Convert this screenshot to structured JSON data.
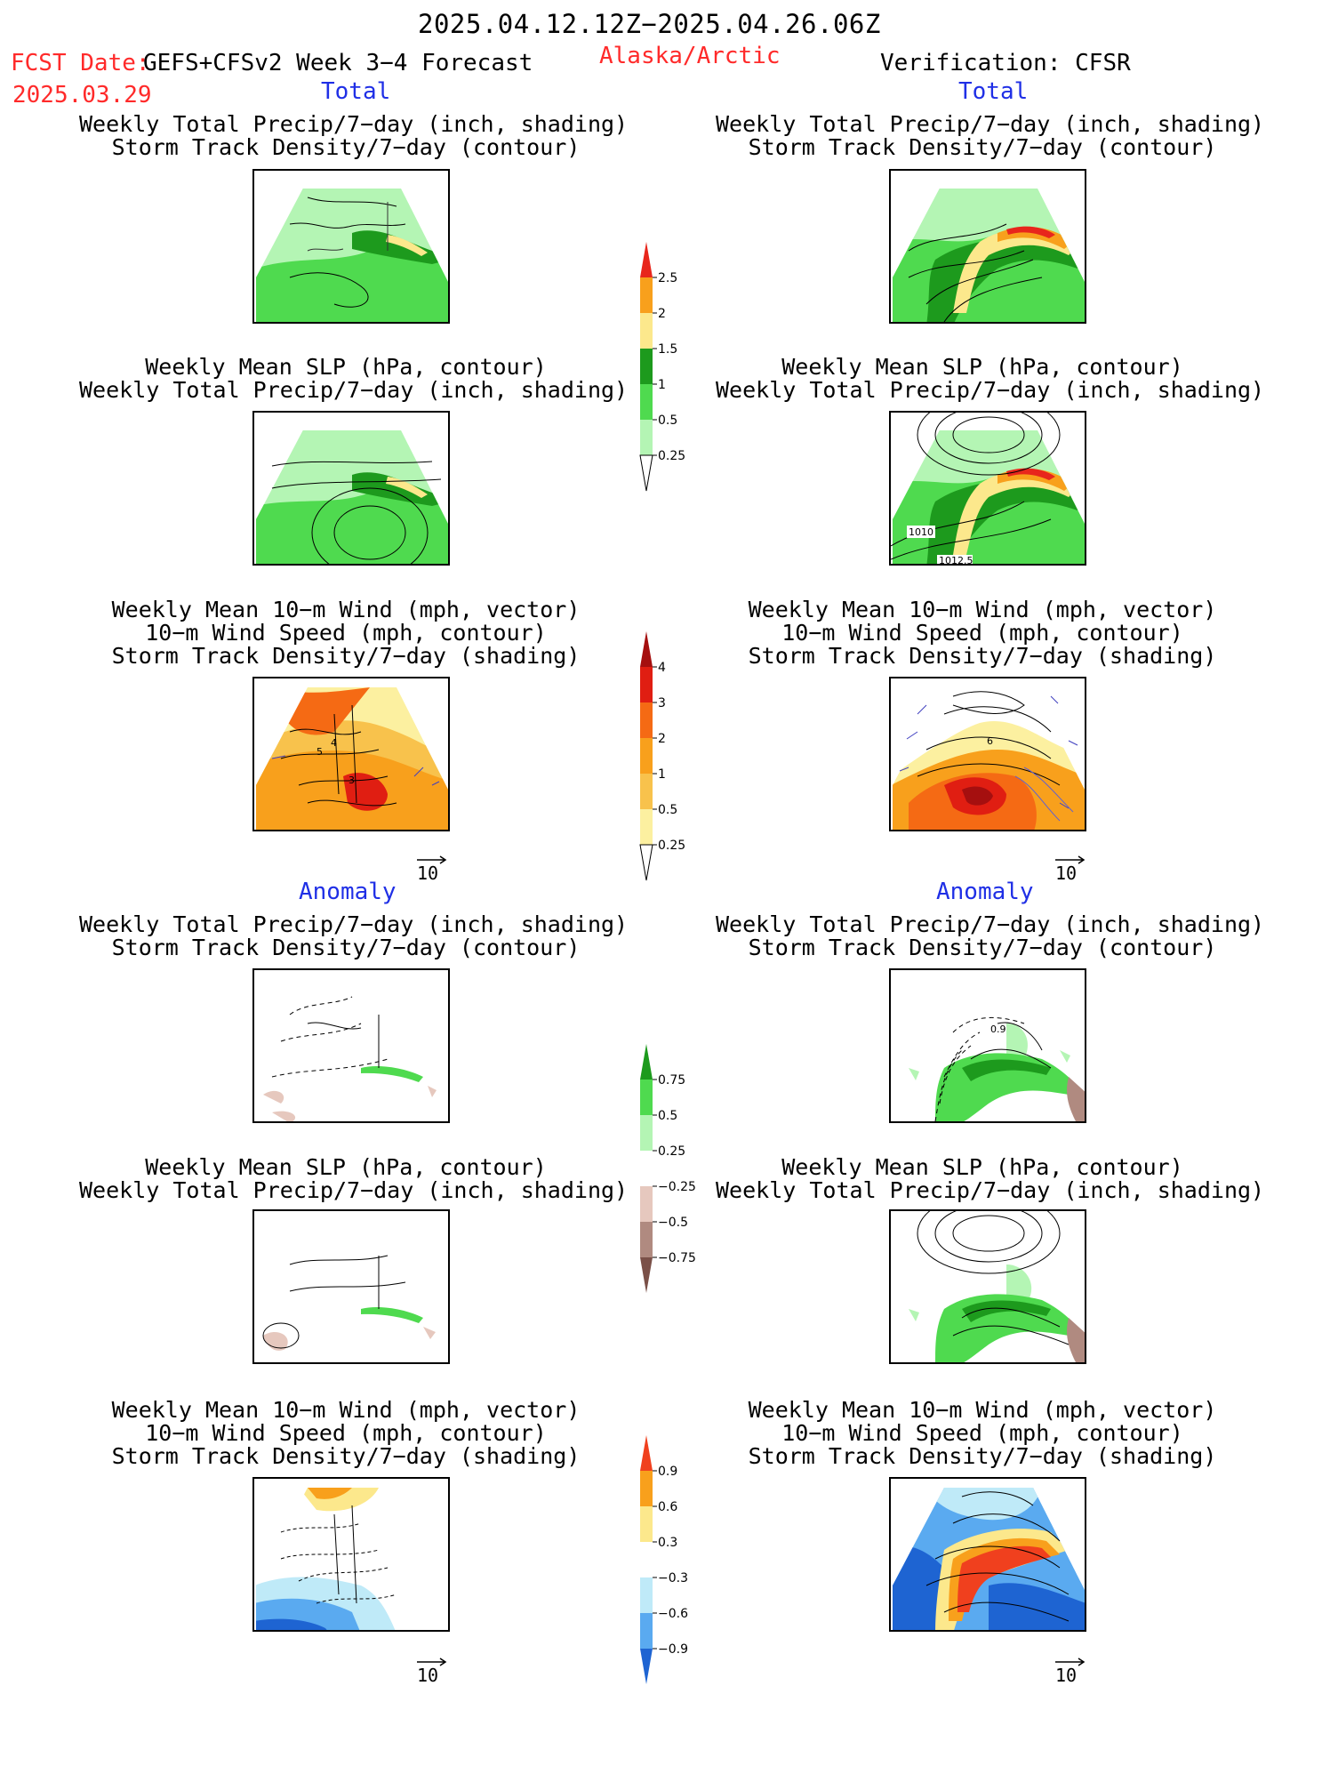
{
  "header": {
    "date_range": "2025.04.12.12Z−2025.04.26.06Z",
    "fcst_label": "FCST Date:",
    "fcst_date": "2025.03.29",
    "model": "GEFS+CFSv2 Week 3−4 Forecast",
    "region": "Alaska/Arctic",
    "verification": "Verification: CFSR"
  },
  "sections": {
    "total": "Total",
    "anomaly": "Anomaly"
  },
  "captions": {
    "precip_storm": [
      "Weekly Total Precip/7−day (inch, shading)",
      "Storm Track Density/7−day (contour)"
    ],
    "slp_precip": [
      "Weekly Mean SLP (hPa, contour)",
      "Weekly Total Precip/7−day (inch, shading)"
    ],
    "wind": [
      "Weekly Mean 10−m Wind (mph, vector)",
      "10−m Wind Speed (mph, contour)",
      "Storm Track Density/7−day (shading)"
    ]
  },
  "map_labels": {
    "slp_1010": "1010",
    "slp_1012": "1012.5",
    "stdens_4": "4",
    "stdens_5": "5",
    "stdens_3": "3",
    "stdens_6": "6",
    "anom_09": "0.9"
  },
  "vector_ref": "10",
  "colorbars": {
    "precip_total": {
      "labels": [
        "2.5",
        "2",
        "1.5",
        "1",
        "0.5",
        "0.25"
      ],
      "colors": [
        "#e8261c",
        "#f8a01c",
        "#fce88c",
        "#1d9a1d",
        "#4fda4f",
        "#b4f5b4"
      ]
    },
    "storm_total": {
      "labels": [
        "4",
        "3",
        "2",
        "1",
        "0.5",
        "0.25"
      ],
      "colors": [
        "#a50f0f",
        "#e01e12",
        "#f56a14",
        "#f8a01c",
        "#f8c24c",
        "#fcf0a0"
      ]
    },
    "precip_anom": {
      "labels": [
        "0.75",
        "0.5",
        "0.25",
        "−0.25",
        "−0.5",
        "−0.75"
      ],
      "colors": [
        "#1d9a1d",
        "#4fda4f",
        "#b4f5b4",
        "#ffffff",
        "#e6c8be",
        "#b08a80",
        "#7a5048"
      ]
    },
    "storm_anom": {
      "labels": [
        "0.9",
        "0.6",
        "0.3",
        "−0.3",
        "−0.6",
        "−0.9"
      ],
      "colors": [
        "#f0401e",
        "#f8a01c",
        "#fce88c",
        "#ffffff",
        "#bfeaf8",
        "#5aaaf0",
        "#1e64d2"
      ]
    }
  }
}
